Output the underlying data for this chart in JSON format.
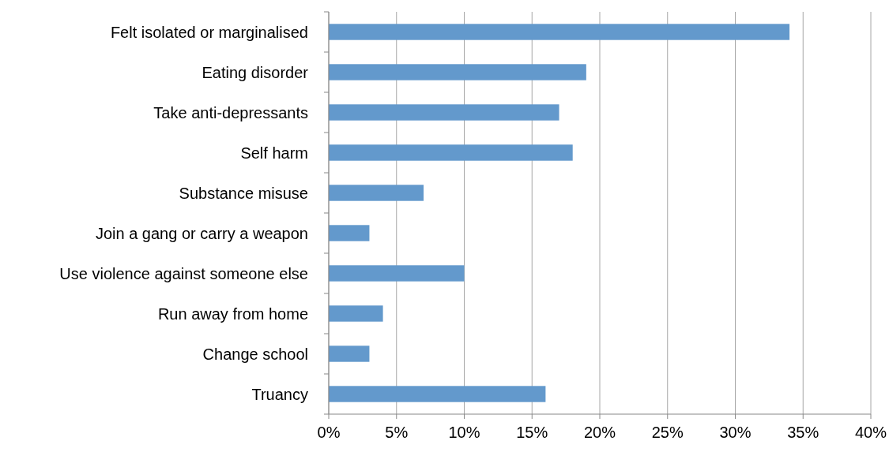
{
  "chart_data": {
    "type": "bar",
    "orientation": "horizontal",
    "categories": [
      "Felt isolated or marginalised",
      "Eating disorder",
      "Take anti-depressants",
      "Self harm",
      "Substance misuse",
      "Join a gang or carry a weapon",
      "Use violence against someone else",
      "Run away from home",
      "Change school",
      "Truancy"
    ],
    "values": [
      34,
      19,
      17,
      18,
      7,
      3,
      10,
      4,
      3,
      16
    ],
    "color": "#6399cc",
    "xlim": [
      0,
      40
    ],
    "xticks": [
      {
        "value": 0,
        "label": "0%"
      },
      {
        "value": 5,
        "label": "5%"
      },
      {
        "value": 10,
        "label": "10%"
      },
      {
        "value": 15,
        "label": "15%"
      },
      {
        "value": 20,
        "label": "20%"
      },
      {
        "value": 25,
        "label": "25%"
      },
      {
        "value": 30,
        "label": "30%"
      },
      {
        "value": 35,
        "label": "35%"
      },
      {
        "value": 40,
        "label": "40%"
      }
    ],
    "grid": "x"
  }
}
